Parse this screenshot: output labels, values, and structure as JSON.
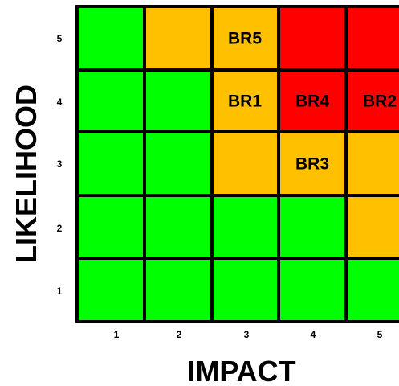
{
  "chart_data": {
    "type": "heatmap",
    "xlabel": "IMPACT",
    "ylabel": "LIKELIHOOD",
    "x_ticks": [
      "1",
      "2",
      "3",
      "4",
      "5"
    ],
    "y_ticks": [
      "1",
      "2",
      "3",
      "4",
      "5"
    ],
    "colors": {
      "green": "#00ff00",
      "amber": "#ffc000",
      "red": "#ff0000",
      "grid": "#000000"
    },
    "cells": [
      {
        "impact": 1,
        "likelihood": 5,
        "level": "green"
      },
      {
        "impact": 2,
        "likelihood": 5,
        "level": "amber"
      },
      {
        "impact": 3,
        "likelihood": 5,
        "level": "amber"
      },
      {
        "impact": 4,
        "likelihood": 5,
        "level": "red"
      },
      {
        "impact": 5,
        "likelihood": 5,
        "level": "red"
      },
      {
        "impact": 1,
        "likelihood": 4,
        "level": "green"
      },
      {
        "impact": 2,
        "likelihood": 4,
        "level": "green"
      },
      {
        "impact": 3,
        "likelihood": 4,
        "level": "amber"
      },
      {
        "impact": 4,
        "likelihood": 4,
        "level": "red"
      },
      {
        "impact": 5,
        "likelihood": 4,
        "level": "red"
      },
      {
        "impact": 1,
        "likelihood": 3,
        "level": "green"
      },
      {
        "impact": 2,
        "likelihood": 3,
        "level": "green"
      },
      {
        "impact": 3,
        "likelihood": 3,
        "level": "amber"
      },
      {
        "impact": 4,
        "likelihood": 3,
        "level": "amber"
      },
      {
        "impact": 5,
        "likelihood": 3,
        "level": "amber"
      },
      {
        "impact": 1,
        "likelihood": 2,
        "level": "green"
      },
      {
        "impact": 2,
        "likelihood": 2,
        "level": "green"
      },
      {
        "impact": 3,
        "likelihood": 2,
        "level": "green"
      },
      {
        "impact": 4,
        "likelihood": 2,
        "level": "green"
      },
      {
        "impact": 5,
        "likelihood": 2,
        "level": "amber"
      },
      {
        "impact": 1,
        "likelihood": 1,
        "level": "green"
      },
      {
        "impact": 2,
        "likelihood": 1,
        "level": "green"
      },
      {
        "impact": 3,
        "likelihood": 1,
        "level": "green"
      },
      {
        "impact": 4,
        "likelihood": 1,
        "level": "green"
      },
      {
        "impact": 5,
        "likelihood": 1,
        "level": "green"
      }
    ],
    "risks": [
      {
        "label": "BR5",
        "impact": 3,
        "likelihood": 5
      },
      {
        "label": "BR1",
        "impact": 3,
        "likelihood": 4
      },
      {
        "label": "BR4",
        "impact": 4,
        "likelihood": 4
      },
      {
        "label": "BR2",
        "impact": 5,
        "likelihood": 4
      },
      {
        "label": "BR3",
        "impact": 4,
        "likelihood": 3
      }
    ]
  }
}
